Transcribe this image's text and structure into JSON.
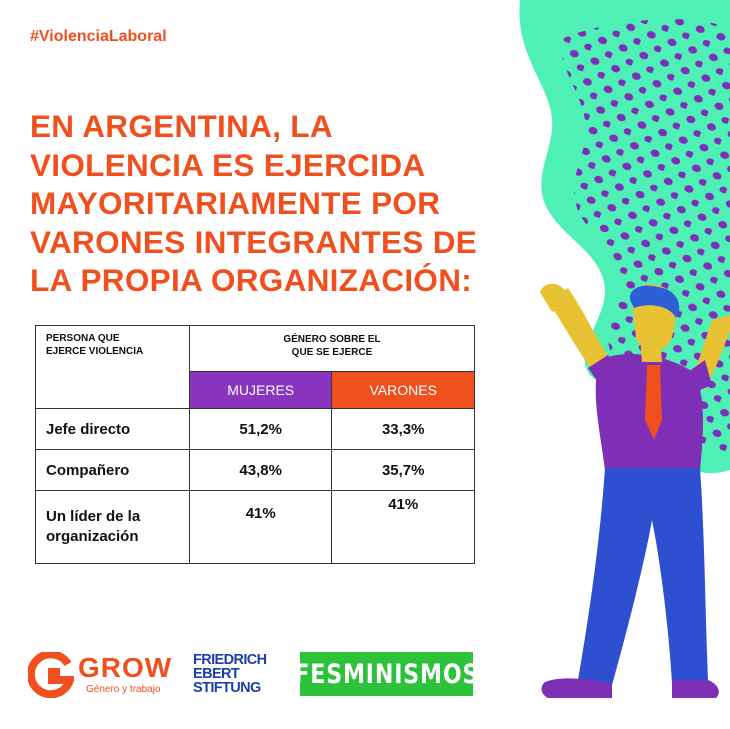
{
  "hashtag": "#ViolenciaLaboral",
  "headline": [
    "EN ARGENTINA, LA",
    "VIOLENCIA ES EJERCIDA",
    "MAYORITARIAMENTE POR",
    "VARONES INTEGRANTES DE",
    "LA PROPIA ORGANIZACIÓN:"
  ],
  "table": {
    "header_person": [
      "PERSONA QUE",
      "EJERCE VIOLENCIA"
    ],
    "header_gender": [
      "GÉNERO SOBRE EL",
      "QUE SE EJERCE"
    ],
    "col_women": "MUJERES",
    "col_men": "VARONES",
    "rows": [
      {
        "label": "Jefe directo",
        "women": "51,2%",
        "men": "33,3%"
      },
      {
        "label": "Compañero",
        "women": "43,8%",
        "men": "35,7%"
      },
      {
        "label_lines": [
          "Un líder de la",
          "organización"
        ],
        "women": "41%",
        "men": "41%"
      }
    ]
  },
  "logos": {
    "grow_name": "GROW",
    "grow_tagline": "Género y trabajo",
    "fes_lines": [
      "FRIEDRICH",
      "EBERT",
      "STIFTUNG"
    ],
    "fesminismos": "FESMINISMOS"
  },
  "colors": {
    "accent_orange": "#f0501e",
    "purple": "#8a35c0",
    "mint": "#4ff0b5",
    "fes_green": "#2ec23a",
    "fes_blue": "#1e3fa8"
  }
}
